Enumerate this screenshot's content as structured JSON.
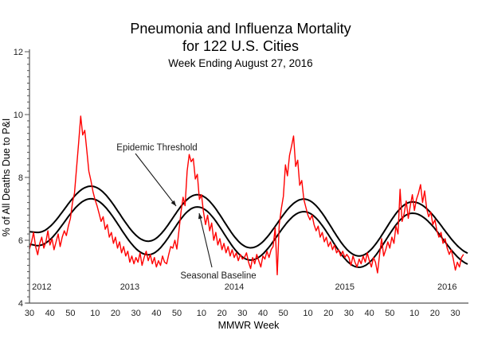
{
  "title": {
    "line1": "Pneumonia and Influenza Mortality",
    "line2": "for 122 U.S. Cities",
    "line3": "Week Ending August 27, 2016"
  },
  "axes": {
    "y": {
      "label": "% of All Deaths Due to P&I",
      "min": 4,
      "max": 12,
      "major_ticks": [
        4,
        6,
        8,
        10,
        12
      ],
      "minor_tick_step": 0.2
    },
    "x": {
      "label": "MMWR Week",
      "ticks": [
        {
          "label": "30",
          "week": 0
        },
        {
          "label": "40",
          "week": 10
        },
        {
          "label": "50",
          "week": 20
        },
        {
          "label": "10",
          "week": 32
        },
        {
          "label": "20",
          "week": 42
        },
        {
          "label": "30",
          "week": 52
        },
        {
          "label": "40",
          "week": 62
        },
        {
          "label": "50",
          "week": 72
        },
        {
          "label": "10",
          "week": 84
        },
        {
          "label": "20",
          "week": 94
        },
        {
          "label": "30",
          "week": 104
        },
        {
          "label": "40",
          "week": 114
        },
        {
          "label": "50",
          "week": 124
        },
        {
          "label": "10",
          "week": 136
        },
        {
          "label": "20",
          "week": 146
        },
        {
          "label": "30",
          "week": 156
        },
        {
          "label": "40",
          "week": 166
        },
        {
          "label": "50",
          "week": 176
        },
        {
          "label": "10",
          "week": 188
        },
        {
          "label": "20",
          "week": 198
        },
        {
          "label": "30",
          "week": 208
        }
      ],
      "year_labels": [
        {
          "label": "2012",
          "week": 6
        },
        {
          "label": "2013",
          "week": 49
        },
        {
          "label": "2014",
          "week": 100
        },
        {
          "label": "2015",
          "week": 154
        },
        {
          "label": "2016",
          "week": 204
        }
      ]
    }
  },
  "annotations": {
    "threshold_label": "Epidemic Threshold",
    "baseline_label": "Seasonal Baseline"
  },
  "colors": {
    "observed": "#ff0000",
    "curves": "#000000",
    "axis": "#555555",
    "text": "#000000",
    "background": "#ffffff"
  },
  "chart_data": {
    "type": "line",
    "title": "Pneumonia and Influenza Mortality for 122 U.S. Cities, Week Ending August 27, 2016",
    "xlabel": "MMWR Week",
    "ylabel": "% of All Deaths Due to P&I",
    "ylim": [
      4,
      12
    ],
    "x_range": "Weekly values, MMWR week 30 of 2012 (index 0) through week 34 of 2016 (index 212)",
    "grid": false,
    "legend_position": "annotated-arrows",
    "series": [
      {
        "name": "Observed % of all deaths due to P&I",
        "style": "jagged-red-line",
        "color": "#ff0000",
        "values": [
          5.72,
          5.95,
          6.25,
          5.8,
          5.54,
          5.9,
          6.1,
          5.75,
          5.95,
          6.3,
          5.85,
          6.05,
          5.7,
          5.95,
          6.2,
          5.8,
          6.1,
          6.3,
          6.15,
          6.45,
          6.7,
          7.2,
          7.5,
          8.3,
          9.1,
          9.95,
          9.35,
          9.5,
          8.85,
          8.2,
          7.9,
          7.55,
          7.3,
          7.1,
          6.85,
          6.6,
          6.75,
          6.35,
          6.5,
          6.1,
          6.25,
          5.9,
          6.1,
          5.75,
          5.95,
          5.6,
          5.8,
          5.5,
          5.65,
          5.3,
          5.5,
          5.25,
          5.45,
          5.3,
          5.6,
          5.2,
          5.45,
          5.65,
          5.35,
          5.55,
          5.25,
          5.45,
          5.15,
          5.35,
          5.2,
          5.5,
          5.3,
          5.25,
          5.55,
          5.8,
          5.75,
          6.0,
          5.72,
          6.3,
          6.9,
          7.37,
          7.1,
          8.2,
          8.73,
          8.5,
          8.6,
          7.95,
          8.1,
          7.3,
          7.45,
          6.9,
          6.5,
          6.8,
          6.3,
          6.55,
          6.0,
          6.25,
          5.85,
          6.05,
          5.7,
          5.9,
          5.6,
          5.8,
          5.5,
          5.7,
          5.45,
          5.6,
          5.35,
          5.55,
          5.4,
          5.45,
          5.6,
          5.3,
          5.1,
          5.45,
          5.25,
          5.55,
          5.35,
          5.15,
          5.5,
          5.4,
          5.65,
          5.45,
          5.7,
          5.8,
          6.4,
          4.9,
          6.5,
          7.0,
          7.4,
          8.4,
          8.05,
          8.7,
          9.0,
          9.32,
          8.35,
          8.55,
          7.75,
          7.9,
          7.3,
          7.05,
          6.8,
          6.65,
          6.8,
          6.5,
          6.3,
          6.45,
          6.1,
          6.25,
          5.95,
          6.1,
          5.8,
          5.95,
          5.7,
          5.85,
          5.6,
          5.7,
          5.5,
          5.65,
          5.45,
          5.55,
          5.45,
          5.2,
          5.5,
          5.3,
          5.15,
          5.4,
          5.25,
          5.5,
          5.3,
          5.6,
          5.35,
          5.15,
          5.45,
          5.3,
          4.96,
          5.55,
          6.05,
          5.5,
          5.7,
          5.95,
          5.75,
          6.1,
          5.9,
          6.45,
          6.2,
          7.62,
          6.6,
          6.85,
          7.25,
          6.7,
          7.1,
          7.45,
          6.95,
          7.3,
          7.5,
          7.77,
          7.2,
          7.57,
          7.0,
          6.75,
          6.9,
          6.5,
          6.65,
          6.3,
          6.1,
          6.25,
          5.9,
          6.05,
          5.75,
          5.55,
          5.7,
          5.4,
          5.05,
          5.3,
          5.15,
          5.45,
          5.55
        ]
      },
      {
        "name": "Seasonal Baseline",
        "style": "smooth-black-curve",
        "color": "#000000",
        "anchors": [
          {
            "week": 0,
            "value": 5.87
          },
          {
            "week": 4,
            "value": 5.83
          },
          {
            "week": 30,
            "value": 7.32
          },
          {
            "week": 58,
            "value": 5.54
          },
          {
            "week": 82,
            "value": 7.06
          },
          {
            "week": 108,
            "value": 5.37
          },
          {
            "week": 134,
            "value": 6.91
          },
          {
            "week": 161,
            "value": 5.14
          },
          {
            "week": 187,
            "value": 6.86
          },
          {
            "week": 217,
            "value": 5.2
          }
        ]
      },
      {
        "name": "Epidemic Threshold",
        "style": "smooth-black-curve",
        "color": "#000000",
        "anchors": [
          {
            "week": 0,
            "value": 6.27
          },
          {
            "week": 4,
            "value": 6.25
          },
          {
            "week": 30,
            "value": 7.72
          },
          {
            "week": 58,
            "value": 5.97
          },
          {
            "week": 82,
            "value": 7.45
          },
          {
            "week": 108,
            "value": 5.76
          },
          {
            "week": 134,
            "value": 7.31
          },
          {
            "week": 161,
            "value": 5.5
          },
          {
            "week": 187,
            "value": 7.22
          },
          {
            "week": 217,
            "value": 5.55
          }
        ]
      }
    ]
  }
}
